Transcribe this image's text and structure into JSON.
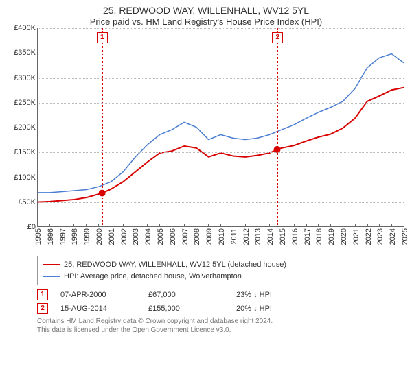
{
  "titles": {
    "line1": "25, REDWOOD WAY, WILLENHALL, WV12 5YL",
    "line2": "Price paid vs. HM Land Registry's House Price Index (HPI)"
  },
  "chart": {
    "type": "line",
    "background_color": "#ffffff",
    "grid_color": "#bbbbbb",
    "axis_color": "#666666",
    "label_fontsize": 11,
    "y": {
      "min": 0,
      "max": 400000,
      "step": 50000,
      "ticks": [
        "£0",
        "£50K",
        "£100K",
        "£150K",
        "£200K",
        "£250K",
        "£300K",
        "£350K",
        "£400K"
      ]
    },
    "x": {
      "min": 1995,
      "max": 2025,
      "ticks": [
        1995,
        1996,
        1997,
        1998,
        1999,
        2000,
        2001,
        2002,
        2003,
        2004,
        2005,
        2006,
        2007,
        2008,
        2009,
        2010,
        2011,
        2012,
        2013,
        2014,
        2015,
        2016,
        2017,
        2018,
        2019,
        2020,
        2021,
        2022,
        2023,
        2024,
        2025
      ]
    },
    "series": [
      {
        "id": "price_paid",
        "label": "25, REDWOOD WAY, WILLENHALL, WV12 5YL (detached house)",
        "color": "#d80000",
        "line_width": 2,
        "points": [
          [
            1995,
            49000
          ],
          [
            1996,
            50000
          ],
          [
            1997,
            52000
          ],
          [
            1998,
            54000
          ],
          [
            1999,
            58000
          ],
          [
            2000.27,
            67000
          ],
          [
            2001,
            75000
          ],
          [
            2002,
            90000
          ],
          [
            2003,
            110000
          ],
          [
            2004,
            130000
          ],
          [
            2005,
            148000
          ],
          [
            2006,
            152000
          ],
          [
            2007,
            162000
          ],
          [
            2008,
            158000
          ],
          [
            2009,
            140000
          ],
          [
            2010,
            148000
          ],
          [
            2011,
            142000
          ],
          [
            2012,
            140000
          ],
          [
            2013,
            143000
          ],
          [
            2014,
            148000
          ],
          [
            2014.62,
            155000
          ],
          [
            2015,
            158000
          ],
          [
            2016,
            163000
          ],
          [
            2017,
            172000
          ],
          [
            2018,
            180000
          ],
          [
            2019,
            186000
          ],
          [
            2020,
            198000
          ],
          [
            2021,
            218000
          ],
          [
            2022,
            252000
          ],
          [
            2023,
            263000
          ],
          [
            2024,
            275000
          ],
          [
            2025,
            280000
          ]
        ],
        "markers": [
          {
            "x": 2000.27,
            "y": 67000,
            "shape": "circle",
            "size": 5
          },
          {
            "x": 2014.62,
            "y": 155000,
            "shape": "circle",
            "size": 5
          }
        ]
      },
      {
        "id": "hpi",
        "label": "HPI: Average price, detached house, Wolverhampton",
        "color": "#4a7dd1",
        "line_width": 1.5,
        "points": [
          [
            1995,
            68000
          ],
          [
            1996,
            68000
          ],
          [
            1997,
            70000
          ],
          [
            1998,
            72000
          ],
          [
            1999,
            74000
          ],
          [
            2000,
            80000
          ],
          [
            2001,
            90000
          ],
          [
            2002,
            110000
          ],
          [
            2003,
            140000
          ],
          [
            2004,
            165000
          ],
          [
            2005,
            185000
          ],
          [
            2006,
            195000
          ],
          [
            2007,
            210000
          ],
          [
            2008,
            200000
          ],
          [
            2009,
            175000
          ],
          [
            2010,
            185000
          ],
          [
            2011,
            178000
          ],
          [
            2012,
            175000
          ],
          [
            2013,
            178000
          ],
          [
            2014,
            185000
          ],
          [
            2015,
            195000
          ],
          [
            2016,
            205000
          ],
          [
            2017,
            218000
          ],
          [
            2018,
            230000
          ],
          [
            2019,
            240000
          ],
          [
            2020,
            252000
          ],
          [
            2021,
            278000
          ],
          [
            2022,
            320000
          ],
          [
            2023,
            340000
          ],
          [
            2024,
            348000
          ],
          [
            2025,
            330000
          ]
        ]
      }
    ],
    "events": [
      {
        "id": "1",
        "x": 2000.27,
        "color": "#d80000"
      },
      {
        "id": "2",
        "x": 2014.62,
        "color": "#d80000"
      }
    ]
  },
  "legend": {
    "border_color": "#999999",
    "items": [
      {
        "color": "#d80000",
        "label": "25, REDWOOD WAY, WILLENHALL, WV12 5YL (detached house)"
      },
      {
        "color": "#4a7dd1",
        "label": "HPI: Average price, detached house, Wolverhampton"
      }
    ]
  },
  "annotations": [
    {
      "badge": "1",
      "badge_color": "#d80000",
      "date": "07-APR-2000",
      "price": "£67,000",
      "delta": "23% ↓ HPI"
    },
    {
      "badge": "2",
      "badge_color": "#d80000",
      "date": "15-AUG-2014",
      "price": "£155,000",
      "delta": "20% ↓ HPI"
    }
  ],
  "footer": {
    "line1": "Contains HM Land Registry data © Crown copyright and database right 2024.",
    "line2": "This data is licensed under the Open Government Licence v3.0."
  }
}
